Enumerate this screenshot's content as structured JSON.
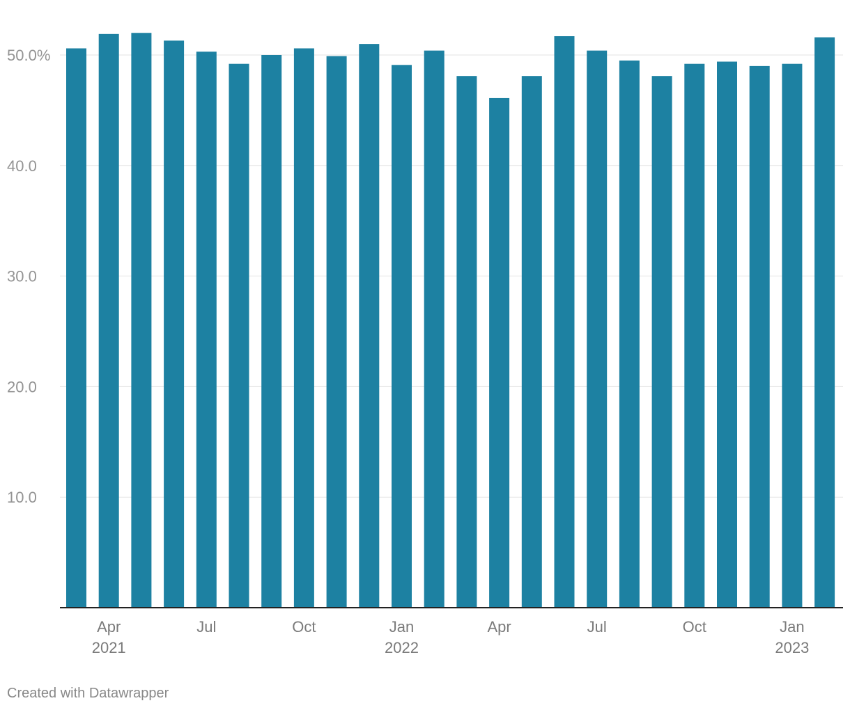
{
  "footer": {
    "credit": "Created with Datawrapper"
  },
  "colors": {
    "bar": "#1d81a2",
    "grid": "#e3e3e3",
    "axis": "#222222",
    "tick_text": "#949494"
  },
  "chart_data": {
    "type": "bar",
    "categories": [
      "2021-03",
      "2021-04",
      "2021-05",
      "2021-06",
      "2021-07",
      "2021-08",
      "2021-09",
      "2021-10",
      "2021-11",
      "2021-12",
      "2022-01",
      "2022-02",
      "2022-03",
      "2022-04",
      "2022-05",
      "2022-06",
      "2022-07",
      "2022-08",
      "2022-09",
      "2022-10",
      "2022-11",
      "2022-12",
      "2023-01",
      "2023-02"
    ],
    "values": [
      50.6,
      51.9,
      52.0,
      51.3,
      50.3,
      49.2,
      50.0,
      50.6,
      49.9,
      51.0,
      49.1,
      50.4,
      48.1,
      46.1,
      48.1,
      51.7,
      50.4,
      49.5,
      48.1,
      49.2,
      49.4,
      49.0,
      49.2,
      51.6
    ],
    "title": "",
    "xlabel": "",
    "ylabel": "",
    "ylim": [
      0,
      50.0
    ],
    "yticks": [
      {
        "value": 10,
        "label": "10.0"
      },
      {
        "value": 20,
        "label": "20.0"
      },
      {
        "value": 30,
        "label": "30.0"
      },
      {
        "value": 40,
        "label": "40.0"
      },
      {
        "value": 50,
        "label": "50.0%"
      }
    ],
    "xticks": [
      {
        "at": "2021-04",
        "line1": "Apr",
        "line2": "2021"
      },
      {
        "at": "2021-07",
        "line1": "Jul",
        "line2": ""
      },
      {
        "at": "2021-10",
        "line1": "Oct",
        "line2": ""
      },
      {
        "at": "2022-01",
        "line1": "Jan",
        "line2": "2022"
      },
      {
        "at": "2022-04",
        "line1": "Apr",
        "line2": ""
      },
      {
        "at": "2022-07",
        "line1": "Jul",
        "line2": ""
      },
      {
        "at": "2022-10",
        "line1": "Oct",
        "line2": ""
      },
      {
        "at": "2023-01",
        "line1": "Jan",
        "line2": "2023"
      }
    ],
    "grid": true
  }
}
